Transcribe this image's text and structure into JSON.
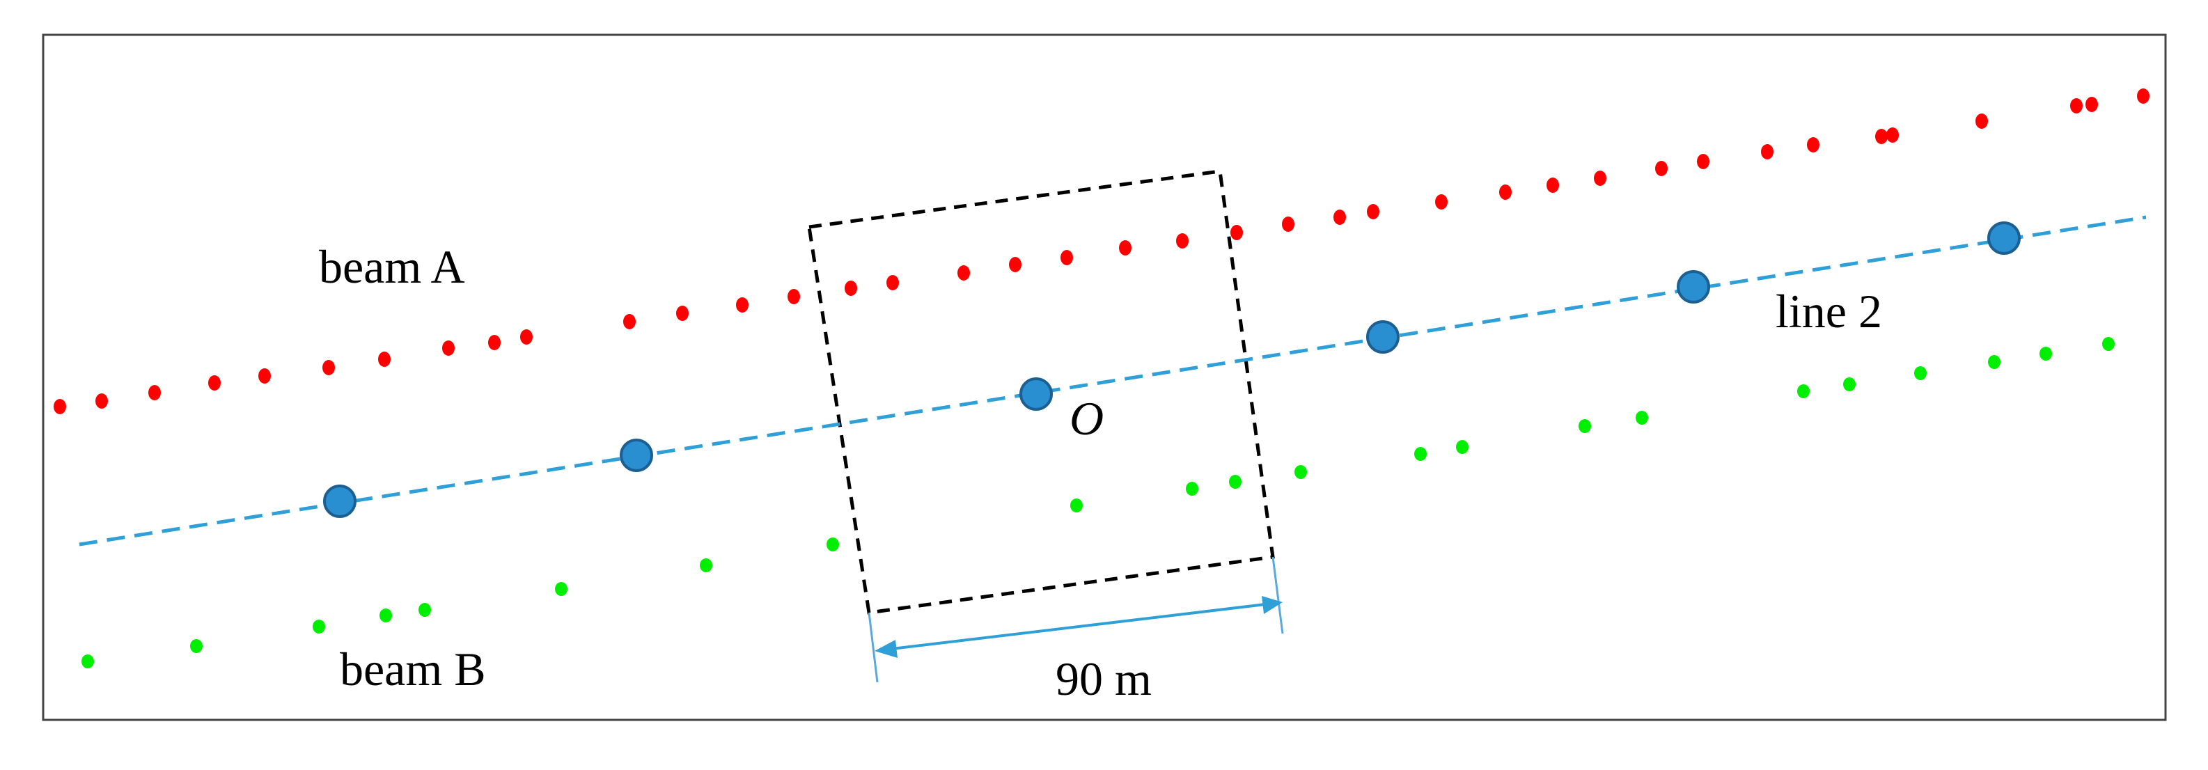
{
  "labels": {
    "beam_a": "beam A",
    "beam_b": "beam B",
    "line_2": "line 2",
    "origin": "O",
    "scale": "90 m"
  },
  "colors": {
    "beam_a": "#ff0000",
    "beam_b": "#00ee00",
    "line": "#2f9fd8",
    "node": "#2a8fd0",
    "node_stroke": "#1b5f93",
    "box": "#000000",
    "frame": "#444444"
  },
  "legend_shapes": {
    "beam_points": "small-dot",
    "line_nodes": "circle",
    "line_style": "dashed",
    "footprint_box": "dashed-rectangle"
  }
}
